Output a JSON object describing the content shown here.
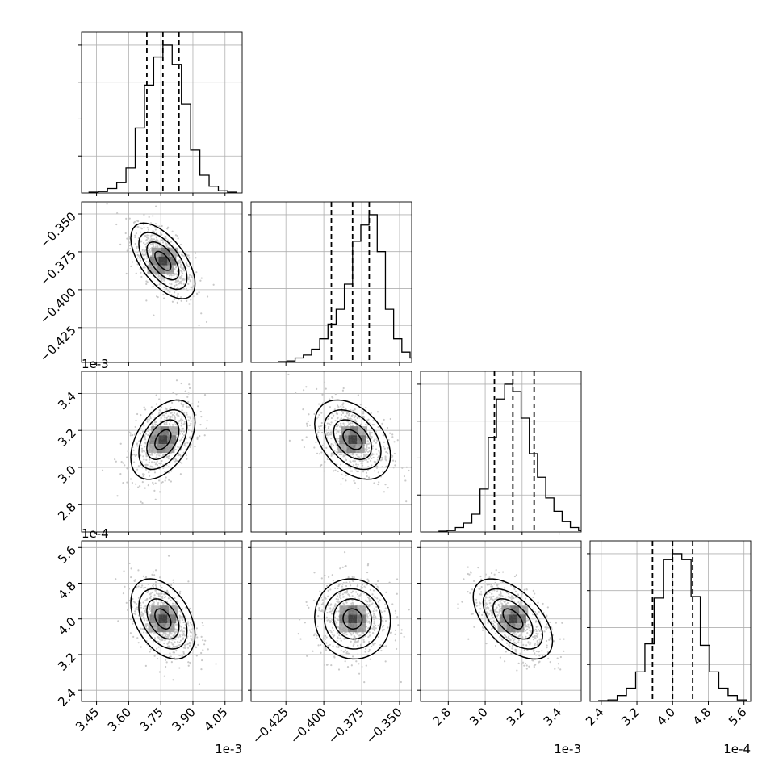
{
  "chart_data": {
    "type": "corner",
    "grid": true,
    "parameters": [
      {
        "range": [
          0.00338,
          0.00413
        ],
        "median": 0.00376,
        "q16": 0.003685,
        "q84": 0.003835,
        "scale_factor": 0.001,
        "offset_text": "1e-3",
        "ticks": [
          0.00345,
          0.0036,
          0.00375,
          0.0039,
          0.00405
        ],
        "tick_labels": [
          "3.45",
          "3.60",
          "3.75",
          "3.90",
          "4.05"
        ]
      },
      {
        "range": [
          -0.448,
          -0.342
        ],
        "median": -0.381,
        "q16": -0.395,
        "q84": -0.37,
        "scale_factor": 1,
        "offset_text": "",
        "ticks": [
          -0.425,
          -0.4,
          -0.375,
          -0.35
        ],
        "tick_labels": [
          "−0.425",
          "−0.400",
          "−0.375",
          "−0.350"
        ]
      },
      {
        "range": [
          0.00265,
          0.00352
        ],
        "median": 0.00315,
        "q16": 0.00305,
        "q84": 0.003265,
        "scale_factor": 0.001,
        "offset_text": "1e-3",
        "ticks": [
          0.0028,
          0.003,
          0.0032,
          0.0034
        ],
        "tick_labels": [
          "2.8",
          "3.0",
          "3.2",
          "3.4"
        ]
      },
      {
        "range": [
          0.000215,
          0.000575
        ],
        "median": 0.0004,
        "q16": 0.000355,
        "q84": 0.000445,
        "scale_factor": 0.0001,
        "offset_text": "1e-4",
        "ticks": [
          0.00024,
          0.00032,
          0.0004,
          0.00048,
          0.00056
        ],
        "tick_labels": [
          "2.4",
          "3.2",
          "4.0",
          "4.8",
          "5.6"
        ]
      }
    ],
    "histograms": [
      [
        0.005,
        0.01,
        0.03,
        0.07,
        0.17,
        0.44,
        0.73,
        0.92,
        1.0,
        0.87,
        0.6,
        0.29,
        0.12,
        0.045,
        0.015,
        0.005
      ],
      [
        0.005,
        0.01,
        0.03,
        0.05,
        0.09,
        0.16,
        0.26,
        0.36,
        0.53,
        0.82,
        0.93,
        1.0,
        0.75,
        0.36,
        0.16,
        0.07,
        0.03,
        0.01
      ],
      [
        0.005,
        0.01,
        0.03,
        0.06,
        0.12,
        0.29,
        0.64,
        0.9,
        1.0,
        0.95,
        0.77,
        0.53,
        0.37,
        0.23,
        0.14,
        0.07,
        0.03,
        0.01
      ],
      [
        0.005,
        0.01,
        0.04,
        0.09,
        0.2,
        0.39,
        0.7,
        0.96,
        1.0,
        0.96,
        0.71,
        0.38,
        0.2,
        0.09,
        0.04,
        0.01
      ]
    ],
    "correlations": {
      "1,0": -0.6,
      "2,0": 0.45,
      "2,1": -0.4,
      "3,0": -0.4,
      "3,1": -0.05,
      "3,2": -0.55
    }
  }
}
